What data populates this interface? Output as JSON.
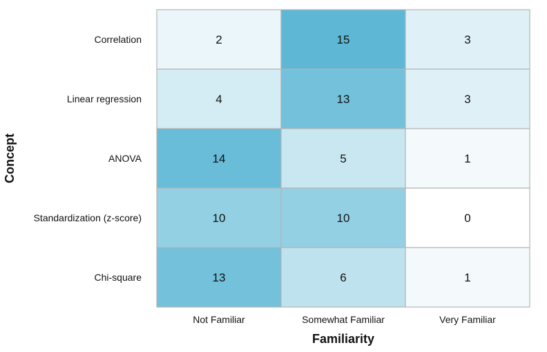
{
  "chart_data": {
    "type": "heatmap",
    "xlabel": "Familiarity",
    "ylabel": "Concept",
    "x_categories": [
      "Not Familiar",
      "Somewhat Familiar",
      "Very Familiar"
    ],
    "y_categories": [
      "Correlation",
      "Linear regression",
      "ANOVA",
      "Standardization (z-score)",
      "Chi-square"
    ],
    "values": [
      [
        2,
        15,
        3
      ],
      [
        4,
        13,
        3
      ],
      [
        14,
        5,
        1
      ],
      [
        10,
        10,
        0
      ],
      [
        13,
        6,
        1
      ]
    ],
    "color_low": "#ffffff",
    "color_high": "#5eb8d5",
    "grid_color": "#b4b4b4",
    "vmin": 0,
    "vmax": 15
  }
}
